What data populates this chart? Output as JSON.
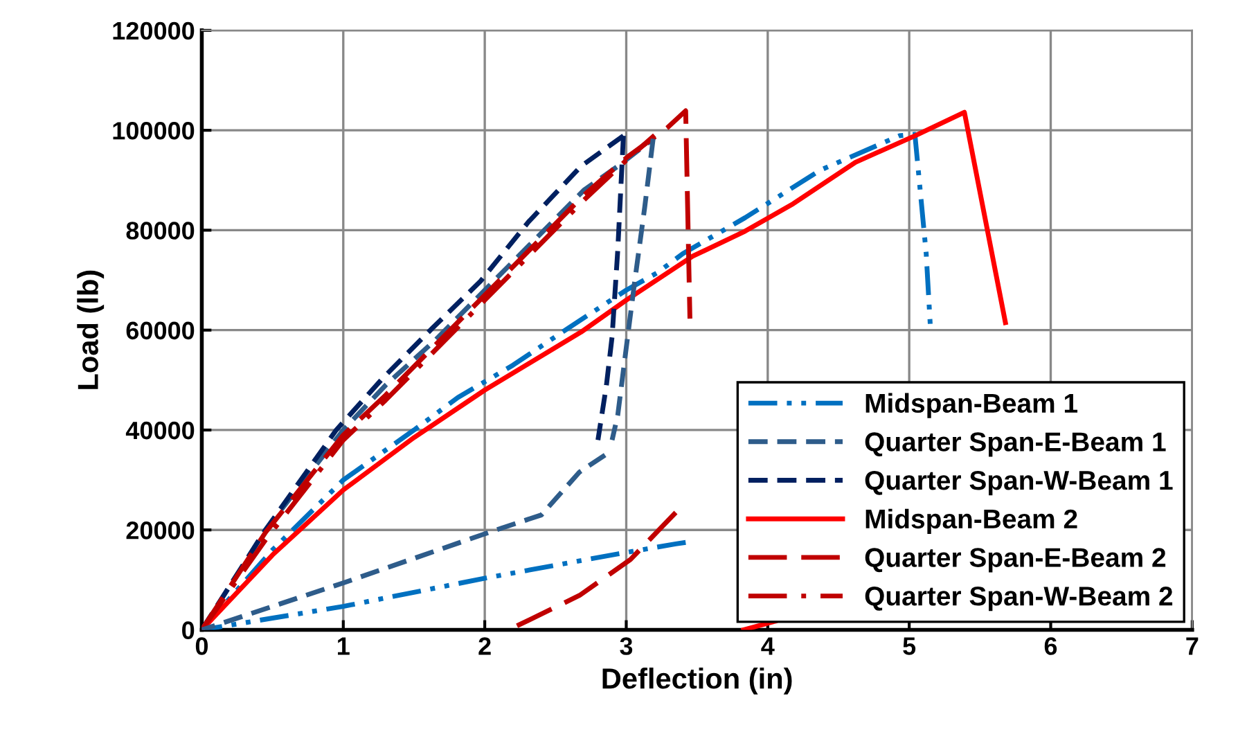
{
  "chart_data": {
    "type": "line",
    "xlabel": "Deflection (in)",
    "ylabel": "Load (lb)",
    "xlim": [
      0,
      7
    ],
    "xticks": [
      0,
      1,
      2,
      3,
      4,
      5,
      6,
      7
    ],
    "ylim": [
      0,
      120000
    ],
    "yticks": [
      0,
      20000,
      40000,
      60000,
      80000,
      100000,
      120000
    ],
    "grid": true,
    "legend": "bottom right",
    "marker": "none",
    "series": [
      {
        "name": "Midspan-Beam 1",
        "color": "#0070c0",
        "line_style": "dashdotdot",
        "x": [
          0,
          0.5,
          1.0,
          1.5,
          1.81,
          2.2,
          2.59,
          3.0,
          3.22,
          3.4,
          3.84,
          4.37,
          4.93,
          5.04,
          5.12,
          5.15
        ],
        "values": [
          0,
          16000,
          30000,
          40000,
          46500,
          53000,
          60400,
          68000,
          71500,
          75300,
          82500,
          92000,
          98900,
          99200,
          75300,
          60400
        ]
      },
      {
        "name": "Quarter Span-E-Beam 1",
        "color": "#2e5c8a",
        "line_style": "dashed",
        "x": [
          0,
          0.45,
          1.0,
          1.3,
          1.65,
          2.0,
          2.35,
          2.7,
          2.95,
          3.19
        ],
        "values": [
          0,
          20000,
          40000,
          49000,
          58000,
          68000,
          78000,
          88000,
          93000,
          98300
        ]
      },
      {
        "name": "Quarter Span-W-Beam 1",
        "color": "#002060",
        "line_style": "dashed",
        "x": [
          0,
          0.45,
          0.95,
          1.28,
          1.63,
          1.97,
          2.31,
          2.68,
          2.98
        ],
        "values": [
          0,
          20000,
          40000,
          50400,
          60400,
          69800,
          81700,
          92800,
          98900
        ]
      },
      {
        "name": "Midspan-Beam 2",
        "color": "#ff0000",
        "line_style": "solid",
        "x": [
          0,
          0.5,
          1.0,
          1.5,
          2.0,
          2.68,
          3.0,
          3.47,
          3.84,
          4.18,
          4.62,
          5.04,
          5.39,
          5.68
        ],
        "values": [
          0,
          15000,
          28000,
          38500,
          48000,
          59600,
          66000,
          74800,
          79800,
          85300,
          93600,
          98900,
          103600,
          61500
        ]
      },
      {
        "name": "Quarter Span-E-Beam 2",
        "color": "#c00000",
        "line_style": "longdashed",
        "x": [
          0,
          0.45,
          1.0,
          1.3,
          1.65,
          2.0,
          2.35,
          2.7,
          3.01,
          3.29,
          3.42,
          3.45
        ],
        "values": [
          0,
          19500,
          39000,
          47000,
          57000,
          67000,
          77000,
          87000,
          94700,
          100500,
          103900,
          62300
        ]
      },
      {
        "name": "Quarter Span-W-Beam 2",
        "color": "#c00000",
        "line_style": "dashdot",
        "x": [
          0,
          0.45,
          1.0,
          1.3,
          1.65,
          2.0,
          2.35,
          2.7,
          3.0,
          3.2
        ],
        "values": [
          0,
          18000,
          38000,
          46000,
          56000,
          66000,
          76000,
          86000,
          94000,
          99000
        ]
      },
      {
        "color": "#0070c0",
        "line_style": "dashdotdot",
        "x": [
          3.42,
          3.35,
          2.94,
          2.03,
          1.0,
          0
        ],
        "values": [
          17500,
          17200,
          15200,
          10500,
          4700,
          0
        ]
      },
      {
        "color": "#2e5c8a",
        "line_style": "dashed",
        "x": [
          3.19,
          3.13,
          3.06,
          3.01,
          2.94,
          2.9
        ],
        "values": [
          98300,
          84500,
          69800,
          58700,
          43000,
          38000
        ]
      },
      {
        "color": "#002060",
        "line_style": "dashed",
        "x": [
          2.98,
          2.94,
          2.9,
          2.86,
          2.8
        ],
        "values": [
          98900,
          76000,
          58700,
          49000,
          38000
        ]
      },
      {
        "color": "#2e5c8a",
        "line_style": "dashed",
        "x": [
          2.85,
          2.67,
          2.4,
          2.08,
          1.0,
          0
        ],
        "values": [
          35000,
          31600,
          23000,
          20000,
          9400,
          0
        ]
      },
      {
        "color": "#ff0000",
        "line_style": "solid",
        "x": [
          4.05,
          3.83
        ],
        "values": [
          1700,
          0
        ]
      },
      {
        "color": "#c00000",
        "line_style": "longdashed",
        "x": [
          3.35,
          3.03,
          2.67,
          2.17
        ],
        "values": [
          23500,
          14100,
          6900,
          0
        ]
      }
    ]
  }
}
